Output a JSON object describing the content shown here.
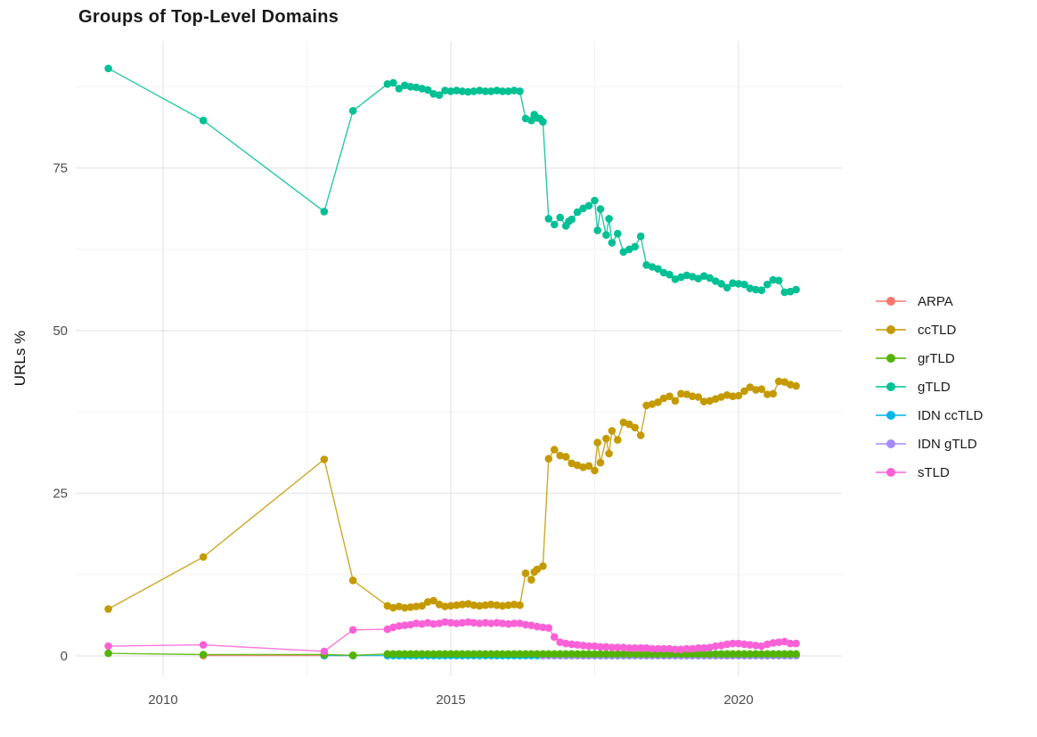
{
  "title": "Groups of Top-Level Domains",
  "legend": [
    {
      "label": "ARPA",
      "color": "#F8766D"
    },
    {
      "label": "ccTLD",
      "color": "#C49A00"
    },
    {
      "label": "grTLD",
      "color": "#53B400"
    },
    {
      "label": "gTLD",
      "color": "#00C094"
    },
    {
      "label": "IDN ccTLD",
      "color": "#00B6EB"
    },
    {
      "label": "IDN gTLD",
      "color": "#A58AFF"
    },
    {
      "label": "sTLD",
      "color": "#FB61D7"
    }
  ],
  "chart_data": {
    "type": "line",
    "title": "Groups of Top-Level Domains",
    "xlabel": "",
    "ylabel": "URLs %",
    "x_ticks": [
      2010,
      2015,
      2020
    ],
    "x_minor": [
      2012.5,
      2017.5
    ],
    "y_ticks": [
      0,
      25,
      50,
      75
    ],
    "y_minor": [
      12.5,
      37.5,
      62.5,
      87.5
    ],
    "x_range": [
      2008.5,
      2021.6
    ],
    "y_range": [
      -1.5,
      94
    ],
    "grid": true,
    "legend_position": "right",
    "series": [
      {
        "name": "ARPA",
        "color": "#F8766D",
        "points": [
          [
            2010.7,
            0.05
          ],
          [
            2012.8,
            0.05
          ],
          [
            2013.3,
            0.05
          ]
        ]
      },
      {
        "name": "IDN ccTLD",
        "color": "#00B6EB",
        "points": [
          [
            2012.8,
            0.05
          ],
          [
            2013.3,
            0.05
          ]
        ],
        "run": {
          "from": 2013.9,
          "to": 2021.0,
          "step": 0.1,
          "y": 0.05
        }
      },
      {
        "name": "IDN gTLD",
        "color": "#A58AFF",
        "points": [],
        "run": {
          "from": 2016.6,
          "to": 2021.0,
          "step": 0.1,
          "y": 0.05
        }
      },
      {
        "name": "grTLD",
        "color": "#53B400",
        "points": [
          [
            2009.05,
            0.4
          ],
          [
            2010.7,
            0.2
          ],
          [
            2012.8,
            0.2
          ],
          [
            2013.3,
            0.1
          ]
        ],
        "run": {
          "from": 2013.9,
          "to": 2021.0,
          "step": 0.1,
          "y": 0.3
        }
      },
      {
        "name": "ccTLD",
        "color": "#C49A00",
        "points": [
          [
            2009.05,
            7.2
          ],
          [
            2010.7,
            15.2
          ],
          [
            2012.8,
            30.2
          ],
          [
            2013.3,
            11.6
          ],
          [
            2013.9,
            7.7
          ],
          [
            2014.0,
            7.4
          ],
          [
            2014.1,
            7.6
          ],
          [
            2014.2,
            7.4
          ],
          [
            2014.3,
            7.5
          ],
          [
            2014.4,
            7.6
          ],
          [
            2014.5,
            7.7
          ],
          [
            2014.6,
            8.3
          ],
          [
            2014.7,
            8.5
          ],
          [
            2014.8,
            7.9
          ],
          [
            2014.9,
            7.6
          ],
          [
            2015.0,
            7.7
          ],
          [
            2015.1,
            7.8
          ],
          [
            2015.2,
            7.9
          ],
          [
            2015.3,
            8.0
          ],
          [
            2015.4,
            7.8
          ],
          [
            2015.5,
            7.7
          ],
          [
            2015.6,
            7.8
          ],
          [
            2015.7,
            7.9
          ],
          [
            2015.8,
            7.8
          ],
          [
            2015.9,
            7.7
          ],
          [
            2016.0,
            7.8
          ],
          [
            2016.1,
            7.9
          ],
          [
            2016.2,
            7.8
          ],
          [
            2016.3,
            12.7
          ],
          [
            2016.4,
            11.7
          ],
          [
            2016.45,
            12.9
          ],
          [
            2016.5,
            13.3
          ],
          [
            2016.6,
            13.8
          ],
          [
            2016.7,
            30.3
          ],
          [
            2016.8,
            31.7
          ],
          [
            2016.9,
            30.8
          ],
          [
            2017.0,
            30.6
          ],
          [
            2017.1,
            29.6
          ],
          [
            2017.2,
            29.3
          ],
          [
            2017.3,
            29.0
          ],
          [
            2017.4,
            29.2
          ],
          [
            2017.5,
            28.5
          ],
          [
            2017.55,
            32.8
          ],
          [
            2017.6,
            29.7
          ],
          [
            2017.7,
            33.4
          ],
          [
            2017.75,
            31.1
          ],
          [
            2017.8,
            34.6
          ],
          [
            2017.9,
            33.2
          ],
          [
            2018.0,
            35.9
          ],
          [
            2018.1,
            35.6
          ],
          [
            2018.2,
            35.1
          ],
          [
            2018.3,
            33.9
          ],
          [
            2018.4,
            38.5
          ],
          [
            2018.5,
            38.7
          ],
          [
            2018.6,
            39.0
          ],
          [
            2018.7,
            39.6
          ],
          [
            2018.8,
            39.9
          ],
          [
            2018.9,
            39.2
          ],
          [
            2019.0,
            40.3
          ],
          [
            2019.1,
            40.2
          ],
          [
            2019.2,
            39.9
          ],
          [
            2019.3,
            39.8
          ],
          [
            2019.4,
            39.1
          ],
          [
            2019.5,
            39.2
          ],
          [
            2019.6,
            39.5
          ],
          [
            2019.7,
            39.8
          ],
          [
            2019.8,
            40.1
          ],
          [
            2019.9,
            39.9
          ],
          [
            2020.0,
            40.0
          ],
          [
            2020.1,
            40.7
          ],
          [
            2020.2,
            41.3
          ],
          [
            2020.3,
            40.9
          ],
          [
            2020.4,
            41.0
          ],
          [
            2020.5,
            40.2
          ],
          [
            2020.6,
            40.3
          ],
          [
            2020.7,
            42.2
          ],
          [
            2020.8,
            42.1
          ],
          [
            2020.9,
            41.7
          ],
          [
            2021.0,
            41.5
          ]
        ]
      },
      {
        "name": "gTLD",
        "color": "#00C094",
        "points": [
          [
            2009.05,
            90.3
          ],
          [
            2010.7,
            82.3
          ],
          [
            2012.8,
            68.3
          ],
          [
            2013.3,
            83.8
          ],
          [
            2013.9,
            87.9
          ],
          [
            2014.0,
            88.1
          ],
          [
            2014.1,
            87.2
          ],
          [
            2014.2,
            87.7
          ],
          [
            2014.3,
            87.5
          ],
          [
            2014.4,
            87.4
          ],
          [
            2014.5,
            87.2
          ],
          [
            2014.6,
            87.0
          ],
          [
            2014.7,
            86.4
          ],
          [
            2014.8,
            86.2
          ],
          [
            2014.9,
            86.9
          ],
          [
            2015.0,
            86.8
          ],
          [
            2015.1,
            86.9
          ],
          [
            2015.2,
            86.8
          ],
          [
            2015.3,
            86.7
          ],
          [
            2015.4,
            86.8
          ],
          [
            2015.5,
            86.9
          ],
          [
            2015.6,
            86.8
          ],
          [
            2015.7,
            86.8
          ],
          [
            2015.8,
            86.9
          ],
          [
            2015.9,
            86.8
          ],
          [
            2016.0,
            86.8
          ],
          [
            2016.1,
            86.9
          ],
          [
            2016.2,
            86.8
          ],
          [
            2016.3,
            82.6
          ],
          [
            2016.4,
            82.3
          ],
          [
            2016.45,
            83.2
          ],
          [
            2016.5,
            82.7
          ],
          [
            2016.55,
            82.6
          ],
          [
            2016.6,
            82.1
          ],
          [
            2016.7,
            67.2
          ],
          [
            2016.8,
            66.3
          ],
          [
            2016.9,
            67.4
          ],
          [
            2017.0,
            66.1
          ],
          [
            2017.05,
            66.8
          ],
          [
            2017.1,
            67.1
          ],
          [
            2017.2,
            68.2
          ],
          [
            2017.3,
            68.8
          ],
          [
            2017.4,
            69.2
          ],
          [
            2017.5,
            70.0
          ],
          [
            2017.55,
            65.4
          ],
          [
            2017.6,
            68.7
          ],
          [
            2017.7,
            64.7
          ],
          [
            2017.75,
            67.2
          ],
          [
            2017.8,
            63.5
          ],
          [
            2017.9,
            64.9
          ],
          [
            2018.0,
            62.1
          ],
          [
            2018.1,
            62.5
          ],
          [
            2018.2,
            62.9
          ],
          [
            2018.3,
            64.5
          ],
          [
            2018.4,
            60.1
          ],
          [
            2018.5,
            59.8
          ],
          [
            2018.6,
            59.5
          ],
          [
            2018.7,
            58.9
          ],
          [
            2018.8,
            58.6
          ],
          [
            2018.9,
            57.9
          ],
          [
            2019.0,
            58.2
          ],
          [
            2019.1,
            58.5
          ],
          [
            2019.2,
            58.3
          ],
          [
            2019.3,
            58.0
          ],
          [
            2019.4,
            58.4
          ],
          [
            2019.5,
            58.1
          ],
          [
            2019.6,
            57.6
          ],
          [
            2019.7,
            57.2
          ],
          [
            2019.8,
            56.6
          ],
          [
            2019.9,
            57.3
          ],
          [
            2020.0,
            57.2
          ],
          [
            2020.1,
            57.1
          ],
          [
            2020.2,
            56.5
          ],
          [
            2020.3,
            56.3
          ],
          [
            2020.4,
            56.2
          ],
          [
            2020.5,
            57.1
          ],
          [
            2020.6,
            57.8
          ],
          [
            2020.7,
            57.7
          ],
          [
            2020.8,
            55.9
          ],
          [
            2020.9,
            56.0
          ],
          [
            2021.0,
            56.3
          ]
        ]
      },
      {
        "name": "sTLD",
        "color": "#FB61D7",
        "points": [
          [
            2009.05,
            1.5
          ],
          [
            2010.7,
            1.7
          ],
          [
            2012.8,
            0.7
          ],
          [
            2013.3,
            4.0
          ],
          [
            2013.9,
            4.1
          ],
          [
            2014.0,
            4.4
          ],
          [
            2014.1,
            4.6
          ],
          [
            2014.2,
            4.7
          ],
          [
            2014.3,
            4.8
          ],
          [
            2014.4,
            5.0
          ],
          [
            2014.5,
            4.9
          ],
          [
            2014.6,
            5.1
          ],
          [
            2014.7,
            4.9
          ],
          [
            2014.8,
            5.0
          ],
          [
            2014.9,
            5.2
          ],
          [
            2015.0,
            5.1
          ],
          [
            2015.1,
            5.0
          ],
          [
            2015.2,
            5.1
          ],
          [
            2015.3,
            5.2
          ],
          [
            2015.4,
            5.1
          ],
          [
            2015.5,
            5.0
          ],
          [
            2015.6,
            5.1
          ],
          [
            2015.7,
            5.0
          ],
          [
            2015.8,
            5.1
          ],
          [
            2015.9,
            5.0
          ],
          [
            2016.0,
            4.9
          ],
          [
            2016.1,
            5.0
          ],
          [
            2016.2,
            5.0
          ],
          [
            2016.3,
            4.8
          ],
          [
            2016.4,
            4.7
          ],
          [
            2016.5,
            4.5
          ],
          [
            2016.6,
            4.4
          ],
          [
            2016.7,
            4.3
          ],
          [
            2016.8,
            2.9
          ],
          [
            2016.9,
            2.1
          ],
          [
            2017.0,
            1.9
          ],
          [
            2017.1,
            1.8
          ],
          [
            2017.2,
            1.7
          ],
          [
            2017.3,
            1.6
          ],
          [
            2017.4,
            1.5
          ],
          [
            2017.5,
            1.5
          ],
          [
            2017.6,
            1.4
          ],
          [
            2017.7,
            1.4
          ],
          [
            2017.8,
            1.3
          ],
          [
            2017.9,
            1.3
          ],
          [
            2018.0,
            1.3
          ],
          [
            2018.1,
            1.2
          ],
          [
            2018.2,
            1.2
          ],
          [
            2018.3,
            1.2
          ],
          [
            2018.4,
            1.2
          ],
          [
            2018.5,
            1.1
          ],
          [
            2018.6,
            1.1
          ],
          [
            2018.7,
            1.1
          ],
          [
            2018.8,
            1.1
          ],
          [
            2018.9,
            1.0
          ],
          [
            2019.0,
            1.0
          ],
          [
            2019.1,
            1.1
          ],
          [
            2019.2,
            1.1
          ],
          [
            2019.3,
            1.2
          ],
          [
            2019.4,
            1.2
          ],
          [
            2019.5,
            1.3
          ],
          [
            2019.6,
            1.5
          ],
          [
            2019.7,
            1.6
          ],
          [
            2019.8,
            1.8
          ],
          [
            2019.9,
            1.9
          ],
          [
            2020.0,
            1.9
          ],
          [
            2020.1,
            1.8
          ],
          [
            2020.2,
            1.7
          ],
          [
            2020.3,
            1.6
          ],
          [
            2020.4,
            1.5
          ],
          [
            2020.5,
            1.8
          ],
          [
            2020.6,
            2.0
          ],
          [
            2020.7,
            2.1
          ],
          [
            2020.8,
            2.2
          ],
          [
            2020.9,
            1.9
          ],
          [
            2021.0,
            1.9
          ]
        ]
      }
    ]
  }
}
